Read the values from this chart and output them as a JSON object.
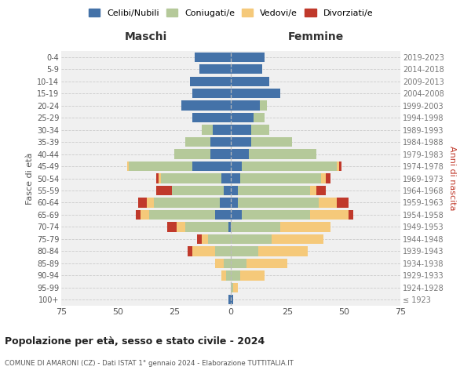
{
  "age_groups": [
    "100+",
    "95-99",
    "90-94",
    "85-89",
    "80-84",
    "75-79",
    "70-74",
    "65-69",
    "60-64",
    "55-59",
    "50-54",
    "45-49",
    "40-44",
    "35-39",
    "30-34",
    "25-29",
    "20-24",
    "15-19",
    "10-14",
    "5-9",
    "0-4"
  ],
  "birth_years": [
    "≤ 1923",
    "1924-1928",
    "1929-1933",
    "1934-1938",
    "1939-1943",
    "1944-1948",
    "1949-1953",
    "1954-1958",
    "1959-1963",
    "1964-1968",
    "1969-1973",
    "1974-1978",
    "1979-1983",
    "1984-1988",
    "1989-1993",
    "1994-1998",
    "1999-2003",
    "2004-2008",
    "2009-2013",
    "2014-2018",
    "2019-2023"
  ],
  "colors": {
    "celibi": "#4472a8",
    "coniugati": "#b5c99a",
    "vedovi": "#f5c97a",
    "divorziati": "#c0392b"
  },
  "legend_colors": {
    "Celibi/Nubili": "#4472a8",
    "Coniugati/e": "#b5c99a",
    "Vedovi/e": "#f5c97a",
    "Divorziati/e": "#c0392b"
  },
  "males": {
    "celibi": [
      1,
      0,
      0,
      0,
      0,
      0,
      1,
      7,
      5,
      3,
      4,
      17,
      9,
      9,
      8,
      17,
      22,
      17,
      18,
      14,
      16
    ],
    "coniugati": [
      0,
      0,
      2,
      3,
      7,
      10,
      19,
      29,
      29,
      23,
      27,
      28,
      16,
      11,
      5,
      0,
      0,
      0,
      0,
      0,
      0
    ],
    "vedovi": [
      0,
      0,
      2,
      4,
      10,
      3,
      4,
      4,
      3,
      0,
      1,
      1,
      0,
      0,
      0,
      0,
      0,
      0,
      0,
      0,
      0
    ],
    "divorziati": [
      0,
      0,
      0,
      0,
      2,
      2,
      4,
      2,
      4,
      7,
      1,
      0,
      0,
      0,
      0,
      0,
      0,
      0,
      0,
      0,
      0
    ]
  },
  "females": {
    "celibi": [
      1,
      0,
      0,
      0,
      0,
      0,
      0,
      5,
      3,
      3,
      4,
      5,
      8,
      9,
      9,
      10,
      13,
      22,
      17,
      14,
      15
    ],
    "coniugati": [
      0,
      1,
      4,
      7,
      12,
      18,
      22,
      30,
      36,
      32,
      36,
      42,
      30,
      18,
      8,
      5,
      3,
      0,
      0,
      0,
      0
    ],
    "vedovi": [
      0,
      2,
      11,
      18,
      22,
      23,
      22,
      17,
      8,
      3,
      2,
      1,
      0,
      0,
      0,
      0,
      0,
      0,
      0,
      0,
      0
    ],
    "divorziati": [
      0,
      0,
      0,
      0,
      0,
      0,
      0,
      2,
      5,
      4,
      2,
      1,
      0,
      0,
      0,
      0,
      0,
      0,
      0,
      0,
      0
    ]
  },
  "title": "Popolazione per età, sesso e stato civile - 2024",
  "subtitle": "COMUNE DI AMARONI (CZ) - Dati ISTAT 1° gennaio 2024 - Elaborazione TUTTITALIA.IT",
  "xlabel_maschi": "Maschi",
  "xlabel_femmine": "Femmine",
  "ylabel_left": "Fasce di età",
  "ylabel_right": "Anni di nascita",
  "xlim": 75,
  "background_color": "#ffffff",
  "grid_color": "#cccccc",
  "ax_bg": "#f0f0f0"
}
